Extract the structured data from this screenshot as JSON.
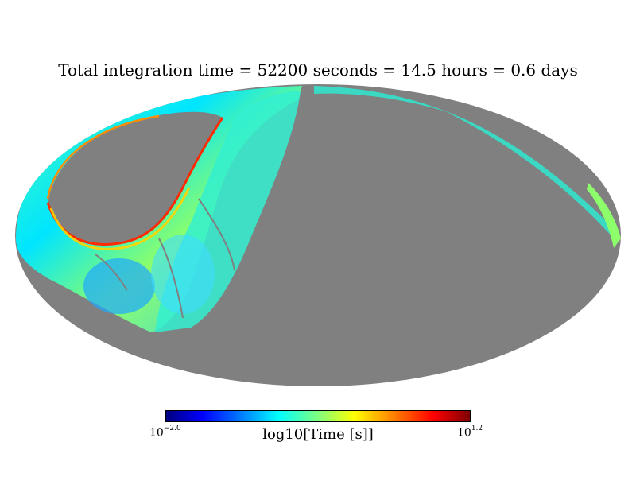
{
  "chart_data": {
    "type": "heatmap",
    "projection": "mollweide",
    "title": "Total integration time = 52200 seconds = 14.5 hours = 0.6 days",
    "colorbar": {
      "label": "log10[Time [s]]",
      "min_base": "10",
      "min_exp": "−2.0",
      "max_base": "10",
      "max_exp": "1.2",
      "range": [
        -2.0,
        1.2
      ],
      "colormap": "jet"
    },
    "unobserved_color": "#808080",
    "background_color": "#ffffff"
  }
}
